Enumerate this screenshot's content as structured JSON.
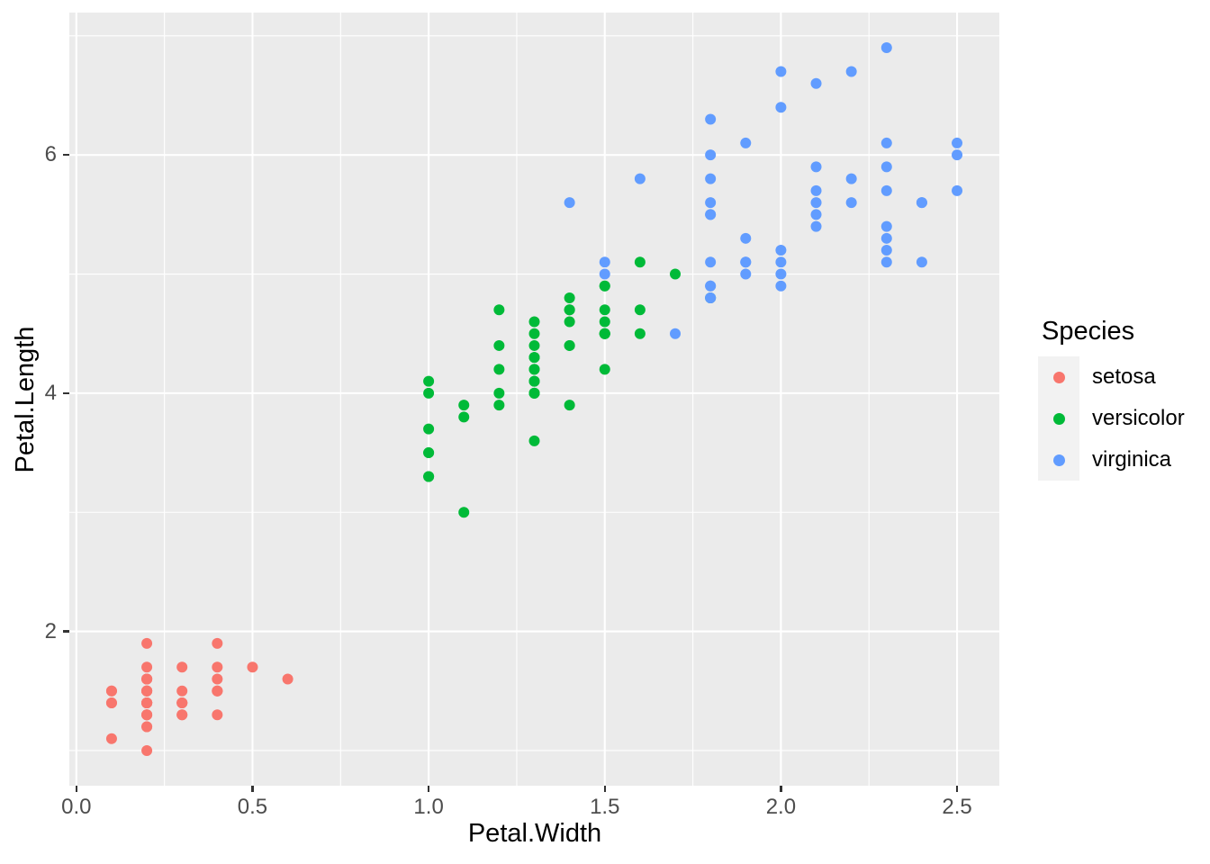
{
  "chart_data": {
    "type": "scatter",
    "title": "",
    "xlabel": "Petal.Width",
    "ylabel": "Petal.Length",
    "xlim": [
      -0.02,
      2.62
    ],
    "ylim": [
      0.705,
      7.195
    ],
    "x_ticks": [
      0.0,
      0.5,
      1.0,
      1.5,
      2.0,
      2.5
    ],
    "x_tick_labels": [
      "0.0",
      "0.5",
      "1.0",
      "1.5",
      "2.0",
      "2.5"
    ],
    "y_ticks": [
      2,
      4,
      6
    ],
    "y_tick_labels": [
      "2",
      "4",
      "6"
    ],
    "x_minor_ticks": [
      0.25,
      0.75,
      1.25,
      1.75,
      2.25
    ],
    "y_minor_ticks": [
      1,
      3,
      5,
      7
    ],
    "grid": "on",
    "panel_background": "#EBEBEB",
    "gridline_color": "#FFFFFF",
    "tick_mark_color": "#333333",
    "tick_label_color": "#4D4D4D",
    "axis_title_color": "#000000",
    "legend": {
      "title": "Species",
      "position": "right",
      "key_background": "#F2F2F2"
    },
    "series": [
      {
        "name": "setosa",
        "color": "#F8766D",
        "points": [
          [
            0.2,
            1.4
          ],
          [
            0.2,
            1.4
          ],
          [
            0.2,
            1.3
          ],
          [
            0.2,
            1.5
          ],
          [
            0.2,
            1.4
          ],
          [
            0.4,
            1.7
          ],
          [
            0.3,
            1.4
          ],
          [
            0.2,
            1.5
          ],
          [
            0.2,
            1.4
          ],
          [
            0.1,
            1.5
          ],
          [
            0.2,
            1.5
          ],
          [
            0.2,
            1.6
          ],
          [
            0.1,
            1.4
          ],
          [
            0.1,
            1.1
          ],
          [
            0.2,
            1.2
          ],
          [
            0.4,
            1.5
          ],
          [
            0.4,
            1.3
          ],
          [
            0.3,
            1.4
          ],
          [
            0.3,
            1.7
          ],
          [
            0.3,
            1.5
          ],
          [
            0.2,
            1.7
          ],
          [
            0.4,
            1.5
          ],
          [
            0.2,
            1.0
          ],
          [
            0.5,
            1.7
          ],
          [
            0.2,
            1.9
          ],
          [
            0.2,
            1.6
          ],
          [
            0.4,
            1.6
          ],
          [
            0.2,
            1.5
          ],
          [
            0.2,
            1.4
          ],
          [
            0.2,
            1.6
          ],
          [
            0.2,
            1.6
          ],
          [
            0.4,
            1.5
          ],
          [
            0.1,
            1.5
          ],
          [
            0.2,
            1.4
          ],
          [
            0.2,
            1.5
          ],
          [
            0.2,
            1.2
          ],
          [
            0.2,
            1.3
          ],
          [
            0.1,
            1.4
          ],
          [
            0.2,
            1.3
          ],
          [
            0.2,
            1.5
          ],
          [
            0.3,
            1.3
          ],
          [
            0.3,
            1.3
          ],
          [
            0.2,
            1.3
          ],
          [
            0.6,
            1.6
          ],
          [
            0.4,
            1.9
          ],
          [
            0.3,
            1.4
          ],
          [
            0.2,
            1.6
          ],
          [
            0.2,
            1.4
          ],
          [
            0.2,
            1.5
          ],
          [
            0.2,
            1.4
          ]
        ]
      },
      {
        "name": "versicolor",
        "color": "#00BA38",
        "points": [
          [
            1.4,
            4.7
          ],
          [
            1.5,
            4.5
          ],
          [
            1.5,
            4.9
          ],
          [
            1.3,
            4.0
          ],
          [
            1.5,
            4.6
          ],
          [
            1.3,
            4.5
          ],
          [
            1.6,
            4.7
          ],
          [
            1.0,
            3.3
          ],
          [
            1.3,
            4.6
          ],
          [
            1.4,
            3.9
          ],
          [
            1.0,
            3.5
          ],
          [
            1.5,
            4.2
          ],
          [
            1.0,
            4.0
          ],
          [
            1.4,
            4.7
          ],
          [
            1.3,
            3.6
          ],
          [
            1.4,
            4.4
          ],
          [
            1.5,
            4.5
          ],
          [
            1.0,
            4.1
          ],
          [
            1.5,
            4.5
          ],
          [
            1.1,
            3.9
          ],
          [
            1.8,
            4.8
          ],
          [
            1.3,
            4.0
          ],
          [
            1.5,
            4.9
          ],
          [
            1.2,
            4.7
          ],
          [
            1.3,
            4.3
          ],
          [
            1.4,
            4.4
          ],
          [
            1.4,
            4.8
          ],
          [
            1.7,
            5.0
          ],
          [
            1.5,
            4.5
          ],
          [
            1.0,
            3.5
          ],
          [
            1.1,
            3.8
          ],
          [
            1.0,
            3.7
          ],
          [
            1.2,
            3.9
          ],
          [
            1.6,
            5.1
          ],
          [
            1.5,
            4.5
          ],
          [
            1.6,
            4.5
          ],
          [
            1.5,
            4.7
          ],
          [
            1.3,
            4.4
          ],
          [
            1.3,
            4.1
          ],
          [
            1.3,
            4.0
          ],
          [
            1.2,
            4.4
          ],
          [
            1.4,
            4.6
          ],
          [
            1.2,
            4.0
          ],
          [
            1.0,
            3.3
          ],
          [
            1.3,
            4.2
          ],
          [
            1.2,
            4.2
          ],
          [
            1.3,
            4.2
          ],
          [
            1.3,
            4.3
          ],
          [
            1.1,
            3.0
          ],
          [
            1.3,
            4.1
          ]
        ]
      },
      {
        "name": "virginica",
        "color": "#619CFF",
        "points": [
          [
            2.5,
            6.0
          ],
          [
            1.9,
            5.1
          ],
          [
            2.1,
            5.9
          ],
          [
            1.8,
            5.6
          ],
          [
            2.2,
            5.8
          ],
          [
            2.1,
            6.6
          ],
          [
            1.7,
            4.5
          ],
          [
            1.8,
            6.3
          ],
          [
            1.8,
            5.8
          ],
          [
            2.5,
            6.1
          ],
          [
            2.0,
            5.1
          ],
          [
            1.9,
            5.3
          ],
          [
            2.1,
            5.5
          ],
          [
            2.0,
            5.0
          ],
          [
            2.4,
            5.1
          ],
          [
            2.3,
            5.3
          ],
          [
            1.8,
            5.5
          ],
          [
            2.2,
            6.7
          ],
          [
            2.3,
            6.9
          ],
          [
            1.5,
            5.0
          ],
          [
            2.3,
            5.7
          ],
          [
            2.0,
            4.9
          ],
          [
            2.0,
            6.7
          ],
          [
            1.8,
            4.9
          ],
          [
            2.1,
            5.7
          ],
          [
            1.8,
            6.0
          ],
          [
            1.8,
            4.8
          ],
          [
            1.8,
            4.9
          ],
          [
            2.1,
            5.6
          ],
          [
            1.6,
            5.8
          ],
          [
            1.9,
            6.1
          ],
          [
            2.0,
            6.4
          ],
          [
            2.2,
            5.6
          ],
          [
            1.5,
            5.1
          ],
          [
            1.4,
            5.6
          ],
          [
            2.3,
            6.1
          ],
          [
            2.4,
            5.6
          ],
          [
            1.8,
            5.5
          ],
          [
            1.8,
            4.8
          ],
          [
            2.1,
            5.4
          ],
          [
            2.4,
            5.6
          ],
          [
            2.3,
            5.1
          ],
          [
            1.9,
            5.1
          ],
          [
            2.3,
            5.9
          ],
          [
            2.5,
            5.7
          ],
          [
            2.3,
            5.2
          ],
          [
            1.9,
            5.0
          ],
          [
            2.0,
            5.2
          ],
          [
            2.3,
            5.4
          ],
          [
            1.8,
            5.1
          ]
        ]
      }
    ]
  }
}
